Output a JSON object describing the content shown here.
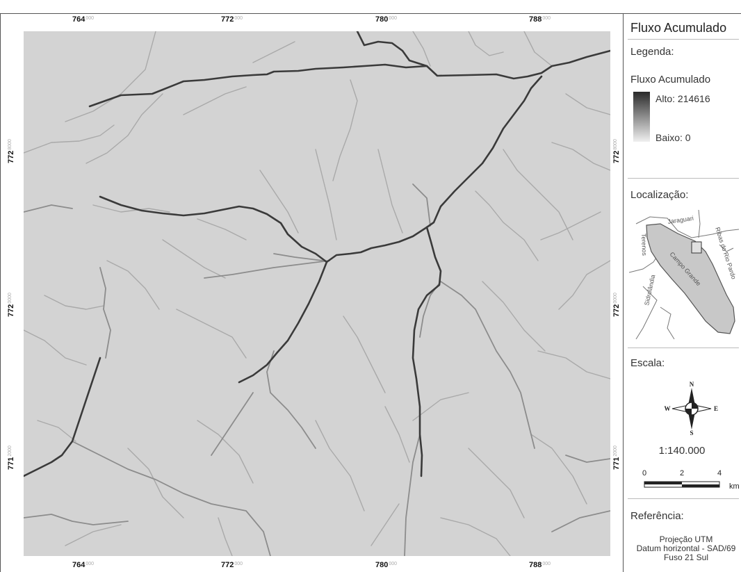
{
  "map": {
    "top_ticks": [
      {
        "major": "764",
        "minor": "000"
      },
      {
        "major": "772",
        "minor": "000"
      },
      {
        "major": "780",
        "minor": "000"
      },
      {
        "major": "788",
        "minor": "000"
      }
    ],
    "bottom_ticks": [
      {
        "major": "764",
        "minor": "000"
      },
      {
        "major": "772",
        "minor": "000"
      },
      {
        "major": "780",
        "minor": "000"
      },
      {
        "major": "788",
        "minor": "000"
      }
    ],
    "left_ticks": [
      {
        "major": "772",
        "minor": "8000"
      },
      {
        "major": "772",
        "minor": "0000"
      },
      {
        "major": "771",
        "minor": "2000"
      }
    ],
    "right_ticks": [
      {
        "major": "772",
        "minor": "8000"
      },
      {
        "major": "772",
        "minor": "0000"
      },
      {
        "major": "771",
        "minor": "2000"
      }
    ],
    "colors": {
      "background": "#d3d3d3",
      "main_river": "#3a3a3a",
      "tributary": "#8c8c8c"
    }
  },
  "panel": {
    "title": "Fluxo Acumulado",
    "legend": {
      "heading": "Legenda:",
      "layer_name": "Fluxo Acumulado",
      "high_label": "Alto: 214616",
      "low_label": "Baixo: 0"
    },
    "location": {
      "heading": "Localização:",
      "municipalities": [
        "Jaraguari",
        "Ribas do Rio Pardo",
        "Terenos",
        "Campo Grande",
        "Sidrolândia"
      ]
    },
    "scale": {
      "heading": "Escala:",
      "compass": {
        "n": "N",
        "s": "S",
        "e": "E",
        "w": "W"
      },
      "ratio": "1:140.000",
      "bar_labels": [
        "0",
        "2",
        "4"
      ],
      "unit": "km"
    },
    "reference": {
      "heading": "Referência:",
      "lines": [
        "Projeção UTM",
        "Datum horizontal - SAD/69",
        "Fuso 21 Sul"
      ]
    }
  }
}
